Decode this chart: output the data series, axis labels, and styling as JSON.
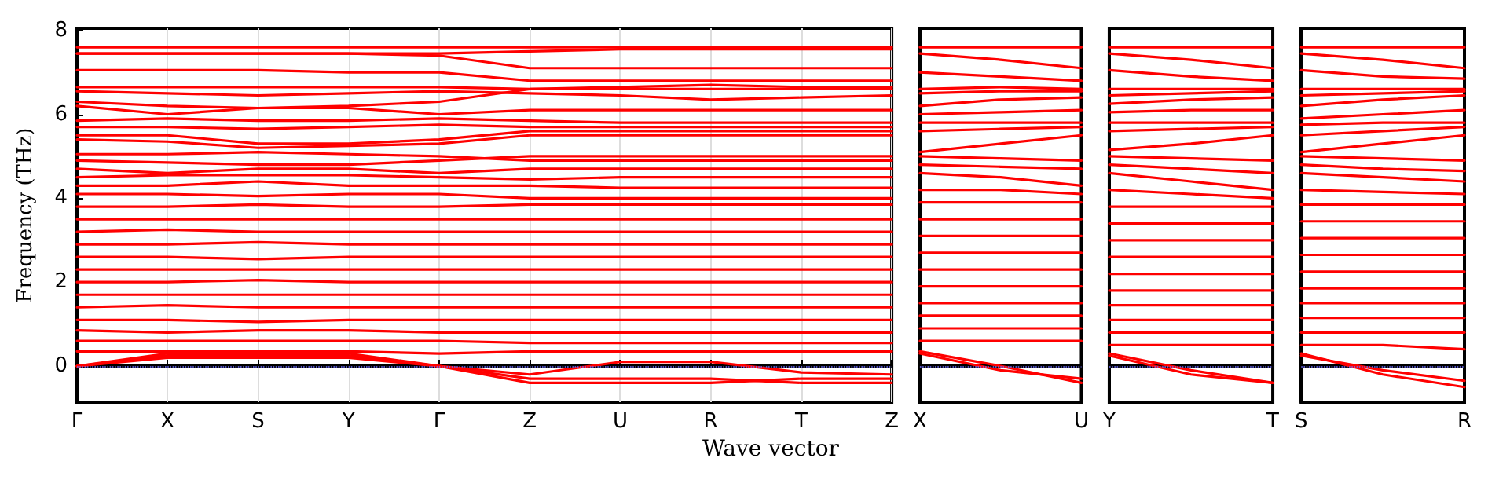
{
  "chart_data": [
    {
      "type": "line",
      "ylabel": "Frequency (THz)",
      "xlabel": "Wave vector",
      "ylim": [
        -0.86,
        8.05
      ],
      "categories": [
        "Γ",
        "X",
        "S",
        "Y",
        "Γ",
        "Z",
        "U",
        "R",
        "T",
        "Z"
      ],
      "yticks": [
        0,
        2,
        4,
        6,
        8
      ],
      "grid": "x",
      "marker": "none",
      "line_style": "solid",
      "ref_lines": [
        {
          "axis": "y",
          "value": 0,
          "color": "#6f6fff",
          "line_style": "dotted"
        }
      ],
      "series": [
        {
          "color": "#ff0000",
          "values": [
            7.6,
            7.6,
            7.6,
            7.6,
            7.6,
            7.6,
            7.6,
            7.6,
            7.6,
            7.6
          ]
        },
        {
          "color": "#ff0000",
          "values": [
            7.45,
            7.45,
            7.45,
            7.45,
            7.45,
            7.5,
            7.55,
            7.55,
            7.55,
            7.55
          ]
        },
        {
          "color": "#ff0000",
          "values": [
            7.45,
            7.45,
            7.45,
            7.45,
            7.4,
            7.1,
            7.1,
            7.1,
            7.1,
            7.1
          ]
        },
        {
          "color": "#ff0000",
          "values": [
            7.05,
            7.05,
            7.05,
            7.0,
            7.0,
            6.8,
            6.8,
            6.8,
            6.8,
            6.8
          ]
        },
        {
          "color": "#ff0000",
          "values": [
            6.65,
            6.65,
            6.65,
            6.65,
            6.65,
            6.6,
            6.6,
            6.6,
            6.6,
            6.6
          ]
        },
        {
          "color": "#ff0000",
          "values": [
            6.55,
            6.5,
            6.45,
            6.5,
            6.55,
            6.5,
            6.45,
            6.35,
            6.4,
            6.45
          ]
        },
        {
          "color": "#ff0000",
          "values": [
            6.3,
            6.2,
            6.15,
            6.2,
            6.3,
            6.6,
            6.65,
            6.7,
            6.65,
            6.65
          ]
        },
        {
          "color": "#ff0000",
          "values": [
            6.2,
            6.0,
            6.15,
            6.15,
            6.0,
            6.1,
            6.1,
            6.1,
            6.1,
            6.1
          ]
        },
        {
          "color": "#ff0000",
          "values": [
            5.85,
            5.9,
            5.85,
            5.85,
            5.9,
            5.85,
            5.8,
            5.8,
            5.8,
            5.8
          ]
        },
        {
          "color": "#ff0000",
          "values": [
            5.7,
            5.7,
            5.65,
            5.7,
            5.75,
            5.7,
            5.7,
            5.7,
            5.7,
            5.7
          ]
        },
        {
          "color": "#ff0000",
          "values": [
            5.5,
            5.5,
            5.3,
            5.3,
            5.4,
            5.6,
            5.6,
            5.6,
            5.6,
            5.6
          ]
        },
        {
          "color": "#ff0000",
          "values": [
            5.4,
            5.35,
            5.2,
            5.25,
            5.3,
            5.5,
            5.5,
            5.5,
            5.5,
            5.5
          ]
        },
        {
          "color": "#ff0000",
          "values": [
            5.05,
            5.05,
            5.1,
            5.05,
            5.0,
            4.9,
            4.9,
            4.9,
            4.9,
            4.9
          ]
        },
        {
          "color": "#ff0000",
          "values": [
            4.9,
            4.85,
            4.8,
            4.8,
            4.9,
            5.0,
            5.0,
            5.0,
            5.0,
            5.0
          ]
        },
        {
          "color": "#ff0000",
          "values": [
            4.7,
            4.6,
            4.7,
            4.7,
            4.6,
            4.7,
            4.7,
            4.7,
            4.7,
            4.7
          ]
        },
        {
          "color": "#ff0000",
          "values": [
            4.5,
            4.55,
            4.55,
            4.55,
            4.5,
            4.45,
            4.5,
            4.5,
            4.5,
            4.5
          ]
        },
        {
          "color": "#ff0000",
          "values": [
            4.3,
            4.3,
            4.4,
            4.3,
            4.3,
            4.3,
            4.25,
            4.25,
            4.25,
            4.25
          ]
        },
        {
          "color": "#ff0000",
          "values": [
            4.1,
            4.1,
            4.05,
            4.1,
            4.1,
            4.0,
            4.0,
            4.0,
            4.0,
            4.0
          ]
        },
        {
          "color": "#ff0000",
          "values": [
            3.8,
            3.8,
            3.85,
            3.8,
            3.8,
            3.85,
            3.85,
            3.85,
            3.85,
            3.85
          ]
        },
        {
          "color": "#ff0000",
          "values": [
            3.5,
            3.5,
            3.5,
            3.5,
            3.5,
            3.5,
            3.5,
            3.5,
            3.5,
            3.5
          ]
        },
        {
          "color": "#ff0000",
          "values": [
            3.2,
            3.25,
            3.2,
            3.2,
            3.2,
            3.2,
            3.2,
            3.2,
            3.2,
            3.2
          ]
        },
        {
          "color": "#ff0000",
          "values": [
            2.9,
            2.9,
            2.95,
            2.9,
            2.9,
            2.9,
            2.9,
            2.9,
            2.9,
            2.9
          ]
        },
        {
          "color": "#ff0000",
          "values": [
            2.6,
            2.6,
            2.55,
            2.6,
            2.6,
            2.6,
            2.6,
            2.6,
            2.6,
            2.6
          ]
        },
        {
          "color": "#ff0000",
          "values": [
            2.3,
            2.3,
            2.3,
            2.3,
            2.3,
            2.3,
            2.3,
            2.3,
            2.3,
            2.3
          ]
        },
        {
          "color": "#ff0000",
          "values": [
            2.0,
            2.0,
            2.05,
            2.0,
            2.0,
            2.0,
            2.0,
            2.0,
            2.0,
            2.0
          ]
        },
        {
          "color": "#ff0000",
          "values": [
            1.7,
            1.7,
            1.7,
            1.7,
            1.7,
            1.7,
            1.7,
            1.7,
            1.7,
            1.7
          ]
        },
        {
          "color": "#ff0000",
          "values": [
            1.4,
            1.45,
            1.4,
            1.4,
            1.4,
            1.4,
            1.4,
            1.4,
            1.4,
            1.4
          ]
        },
        {
          "color": "#ff0000",
          "values": [
            1.1,
            1.1,
            1.05,
            1.1,
            1.1,
            1.1,
            1.1,
            1.1,
            1.1,
            1.1
          ]
        },
        {
          "color": "#ff0000",
          "values": [
            0.85,
            0.8,
            0.85,
            0.85,
            0.8,
            0.8,
            0.8,
            0.8,
            0.8,
            0.8
          ]
        },
        {
          "color": "#ff0000",
          "values": [
            0.6,
            0.6,
            0.6,
            0.6,
            0.6,
            0.55,
            0.55,
            0.55,
            0.55,
            0.55
          ]
        },
        {
          "color": "#ff0000",
          "values": [
            0.35,
            0.35,
            0.35,
            0.35,
            0.3,
            0.35,
            0.35,
            0.35,
            0.35,
            0.35
          ]
        },
        {
          "color": "#ff0000",
          "values": [
            0,
            0.3,
            0.3,
            0.3,
            0,
            -0.2,
            0.1,
            0.1,
            -0.15,
            -0.2
          ]
        },
        {
          "color": "#ff0000",
          "values": [
            0,
            0.25,
            0.25,
            0.25,
            0,
            -0.3,
            -0.3,
            -0.3,
            -0.4,
            -0.4
          ]
        },
        {
          "color": "#ff0000",
          "values": [
            0,
            0.2,
            0.2,
            0.2,
            0,
            -0.4,
            -0.4,
            -0.4,
            -0.3,
            -0.3
          ]
        }
      ]
    },
    {
      "type": "line",
      "ylim": [
        -0.86,
        8.05
      ],
      "categories": [
        "X",
        null,
        "U"
      ],
      "yticks": [
        0,
        2,
        4,
        6,
        8
      ],
      "tick_labels": "x",
      "marker": "none",
      "line_style": "solid",
      "ref_lines": [
        {
          "axis": "y",
          "value": 0,
          "color": "#6f6fff",
          "line_style": "dotted"
        }
      ],
      "series": [
        {
          "color": "#ff0000",
          "values": [
            7.6,
            7.6,
            7.6
          ]
        },
        {
          "color": "#ff0000",
          "values": [
            7.45,
            7.3,
            7.1
          ]
        },
        {
          "color": "#ff0000",
          "values": [
            7.0,
            6.9,
            6.8
          ]
        },
        {
          "color": "#ff0000",
          "values": [
            6.6,
            6.65,
            6.6
          ]
        },
        {
          "color": "#ff0000",
          "values": [
            6.5,
            6.55,
            6.55
          ]
        },
        {
          "color": "#ff0000",
          "values": [
            6.2,
            6.35,
            6.4
          ]
        },
        {
          "color": "#ff0000",
          "values": [
            6.0,
            6.05,
            6.1
          ]
        },
        {
          "color": "#ff0000",
          "values": [
            5.8,
            5.8,
            5.8
          ]
        },
        {
          "color": "#ff0000",
          "values": [
            5.6,
            5.65,
            5.7
          ]
        },
        {
          "color": "#ff0000",
          "values": [
            5.1,
            5.3,
            5.5
          ]
        },
        {
          "color": "#ff0000",
          "values": [
            5.0,
            4.95,
            4.9
          ]
        },
        {
          "color": "#ff0000",
          "values": [
            4.8,
            4.75,
            4.7
          ]
        },
        {
          "color": "#ff0000",
          "values": [
            4.6,
            4.5,
            4.3
          ]
        },
        {
          "color": "#ff0000",
          "values": [
            4.2,
            4.2,
            4.1
          ]
        },
        {
          "color": "#ff0000",
          "values": [
            3.9,
            3.9,
            3.9
          ]
        },
        {
          "color": "#ff0000",
          "values": [
            3.5,
            3.5,
            3.5
          ]
        },
        {
          "color": "#ff0000",
          "values": [
            3.1,
            3.1,
            3.1
          ]
        },
        {
          "color": "#ff0000",
          "values": [
            2.7,
            2.7,
            2.7
          ]
        },
        {
          "color": "#ff0000",
          "values": [
            2.3,
            2.3,
            2.3
          ]
        },
        {
          "color": "#ff0000",
          "values": [
            1.9,
            1.9,
            1.9
          ]
        },
        {
          "color": "#ff0000",
          "values": [
            1.5,
            1.5,
            1.5
          ]
        },
        {
          "color": "#ff0000",
          "values": [
            1.2,
            1.2,
            1.2
          ]
        },
        {
          "color": "#ff0000",
          "values": [
            0.9,
            0.9,
            0.9
          ]
        },
        {
          "color": "#ff0000",
          "values": [
            0.6,
            0.6,
            0.6
          ]
        },
        {
          "color": "#ff0000",
          "values": [
            0.35,
            0.0,
            -0.4
          ]
        },
        {
          "color": "#ff0000",
          "values": [
            0.3,
            -0.1,
            -0.3
          ]
        }
      ]
    },
    {
      "type": "line",
      "ylim": [
        -0.86,
        8.05
      ],
      "categories": [
        "Y",
        null,
        "T"
      ],
      "yticks": [
        0,
        2,
        4,
        6,
        8
      ],
      "tick_labels": "x",
      "marker": "none",
      "line_style": "solid",
      "ref_lines": [
        {
          "axis": "y",
          "value": 0,
          "color": "#6f6fff",
          "line_style": "dotted"
        }
      ],
      "series": [
        {
          "color": "#ff0000",
          "values": [
            7.6,
            7.6,
            7.6
          ]
        },
        {
          "color": "#ff0000",
          "values": [
            7.45,
            7.3,
            7.1
          ]
        },
        {
          "color": "#ff0000",
          "values": [
            7.05,
            6.9,
            6.8
          ]
        },
        {
          "color": "#ff0000",
          "values": [
            6.6,
            6.6,
            6.6
          ]
        },
        {
          "color": "#ff0000",
          "values": [
            6.45,
            6.5,
            6.55
          ]
        },
        {
          "color": "#ff0000",
          "values": [
            6.25,
            6.35,
            6.4
          ]
        },
        {
          "color": "#ff0000",
          "values": [
            6.05,
            6.1,
            6.1
          ]
        },
        {
          "color": "#ff0000",
          "values": [
            5.8,
            5.8,
            5.8
          ]
        },
        {
          "color": "#ff0000",
          "values": [
            5.6,
            5.65,
            5.7
          ]
        },
        {
          "color": "#ff0000",
          "values": [
            5.15,
            5.3,
            5.5
          ]
        },
        {
          "color": "#ff0000",
          "values": [
            5.0,
            4.95,
            4.9
          ]
        },
        {
          "color": "#ff0000",
          "values": [
            4.8,
            4.7,
            4.6
          ]
        },
        {
          "color": "#ff0000",
          "values": [
            4.6,
            4.4,
            4.2
          ]
        },
        {
          "color": "#ff0000",
          "values": [
            4.2,
            4.1,
            4.0
          ]
        },
        {
          "color": "#ff0000",
          "values": [
            3.8,
            3.8,
            3.8
          ]
        },
        {
          "color": "#ff0000",
          "values": [
            3.4,
            3.4,
            3.4
          ]
        },
        {
          "color": "#ff0000",
          "values": [
            3.0,
            3.0,
            3.0
          ]
        },
        {
          "color": "#ff0000",
          "values": [
            2.6,
            2.6,
            2.6
          ]
        },
        {
          "color": "#ff0000",
          "values": [
            2.2,
            2.2,
            2.2
          ]
        },
        {
          "color": "#ff0000",
          "values": [
            1.8,
            1.8,
            1.8
          ]
        },
        {
          "color": "#ff0000",
          "values": [
            1.45,
            1.45,
            1.45
          ]
        },
        {
          "color": "#ff0000",
          "values": [
            1.1,
            1.1,
            1.1
          ]
        },
        {
          "color": "#ff0000",
          "values": [
            0.8,
            0.8,
            0.8
          ]
        },
        {
          "color": "#ff0000",
          "values": [
            0.5,
            0.5,
            0.5
          ]
        },
        {
          "color": "#ff0000",
          "values": [
            0.3,
            -0.1,
            -0.4
          ]
        },
        {
          "color": "#ff0000",
          "values": [
            0.25,
            -0.2,
            -0.4
          ]
        }
      ]
    },
    {
      "type": "line",
      "ylim": [
        -0.86,
        8.05
      ],
      "categories": [
        "S",
        null,
        "R"
      ],
      "yticks": [
        0,
        2,
        4,
        6,
        8
      ],
      "tick_labels": "x",
      "marker": "none",
      "line_style": "solid",
      "ref_lines": [
        {
          "axis": "y",
          "value": 0,
          "color": "#6f6fff",
          "line_style": "dotted"
        }
      ],
      "series": [
        {
          "color": "#ff0000",
          "values": [
            7.6,
            7.6,
            7.6
          ]
        },
        {
          "color": "#ff0000",
          "values": [
            7.45,
            7.3,
            7.1
          ]
        },
        {
          "color": "#ff0000",
          "values": [
            7.05,
            6.9,
            6.85
          ]
        },
        {
          "color": "#ff0000",
          "values": [
            6.6,
            6.6,
            6.6
          ]
        },
        {
          "color": "#ff0000",
          "values": [
            6.45,
            6.5,
            6.55
          ]
        },
        {
          "color": "#ff0000",
          "values": [
            6.2,
            6.35,
            6.45
          ]
        },
        {
          "color": "#ff0000",
          "values": [
            5.9,
            6.0,
            6.1
          ]
        },
        {
          "color": "#ff0000",
          "values": [
            5.75,
            5.8,
            5.8
          ]
        },
        {
          "color": "#ff0000",
          "values": [
            5.5,
            5.6,
            5.7
          ]
        },
        {
          "color": "#ff0000",
          "values": [
            5.1,
            5.3,
            5.5
          ]
        },
        {
          "color": "#ff0000",
          "values": [
            5.0,
            4.95,
            4.9
          ]
        },
        {
          "color": "#ff0000",
          "values": [
            4.8,
            4.7,
            4.65
          ]
        },
        {
          "color": "#ff0000",
          "values": [
            4.6,
            4.5,
            4.4
          ]
        },
        {
          "color": "#ff0000",
          "values": [
            4.2,
            4.15,
            4.1
          ]
        },
        {
          "color": "#ff0000",
          "values": [
            3.85,
            3.85,
            3.85
          ]
        },
        {
          "color": "#ff0000",
          "values": [
            3.45,
            3.45,
            3.45
          ]
        },
        {
          "color": "#ff0000",
          "values": [
            3.05,
            3.05,
            3.05
          ]
        },
        {
          "color": "#ff0000",
          "values": [
            2.65,
            2.65,
            2.65
          ]
        },
        {
          "color": "#ff0000",
          "values": [
            2.25,
            2.25,
            2.25
          ]
        },
        {
          "color": "#ff0000",
          "values": [
            1.85,
            1.85,
            1.85
          ]
        },
        {
          "color": "#ff0000",
          "values": [
            1.5,
            1.5,
            1.5
          ]
        },
        {
          "color": "#ff0000",
          "values": [
            1.15,
            1.15,
            1.15
          ]
        },
        {
          "color": "#ff0000",
          "values": [
            0.8,
            0.8,
            0.8
          ]
        },
        {
          "color": "#ff0000",
          "values": [
            0.5,
            0.5,
            0.4
          ]
        },
        {
          "color": "#ff0000",
          "values": [
            0.3,
            -0.2,
            -0.5
          ]
        },
        {
          "color": "#ff0000",
          "values": [
            0.25,
            -0.1,
            -0.35
          ]
        }
      ]
    }
  ]
}
